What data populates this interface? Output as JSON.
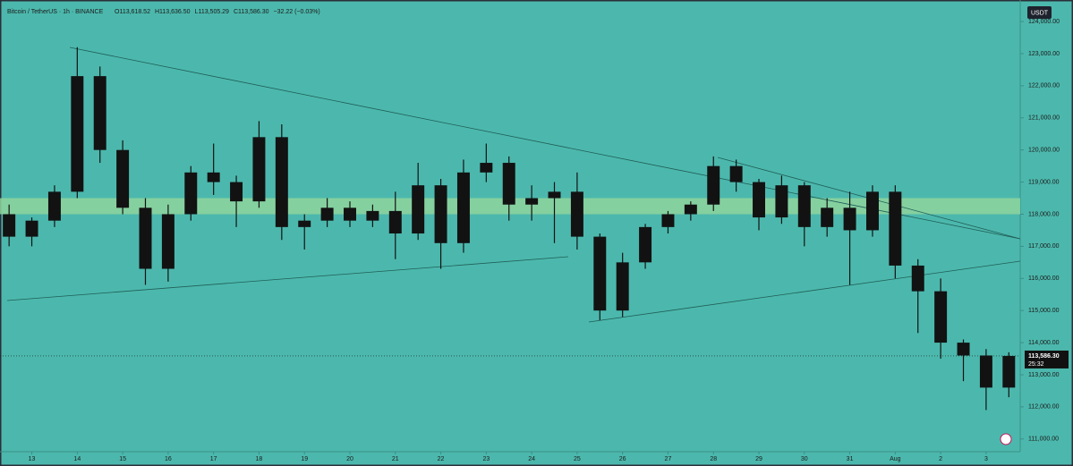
{
  "chart_data": {
    "type": "candlestick",
    "title": "Bitcoin / TetherUS · 1h · BINANCE",
    "ohlc_labels": [
      "O113,618.52",
      "H113,636.50",
      "L113,505.29",
      "C113,586.30",
      "−32.22 (−0.03%)"
    ],
    "currency": "USDT",
    "color": "#121212",
    "open": [
      118000,
      117300,
      117800,
      118700,
      122300,
      120000,
      118200,
      116300,
      118000,
      119300,
      119000,
      118400,
      120400,
      117600,
      117800,
      118200,
      117800,
      118100,
      117400,
      118900,
      117100,
      119300,
      119600,
      118300,
      118500,
      118700,
      117300,
      115000,
      116500,
      117600,
      118000,
      118300,
      119500,
      119000,
      117900,
      118900,
      117600,
      118200,
      117500,
      118700,
      116400,
      115600,
      114000,
      113600,
      112600
    ],
    "high": [
      118300,
      117900,
      118900,
      123200,
      122600,
      120300,
      118500,
      118300,
      119500,
      120200,
      119200,
      120900,
      120800,
      118000,
      118500,
      118400,
      118300,
      118700,
      119600,
      119100,
      119700,
      120200,
      119800,
      118900,
      119000,
      119300,
      117400,
      116800,
      117700,
      118100,
      118400,
      119800,
      119700,
      119100,
      119200,
      119000,
      118500,
      118700,
      118900,
      118900,
      116600,
      116000,
      114100,
      113800,
      113700
    ],
    "low": [
      117000,
      117000,
      117600,
      118500,
      119600,
      118000,
      115800,
      115900,
      117800,
      118600,
      117600,
      118200,
      117200,
      116900,
      117600,
      117600,
      117600,
      116600,
      117200,
      116300,
      116800,
      119000,
      117800,
      117800,
      117100,
      116900,
      114700,
      114800,
      116300,
      117400,
      117800,
      118100,
      118700,
      117500,
      117700,
      117000,
      117300,
      115800,
      117300,
      116000,
      114300,
      113500,
      112800,
      111900,
      112300
    ],
    "close": [
      117300,
      117800,
      118700,
      122300,
      120000,
      118200,
      116300,
      118000,
      119300,
      119000,
      118400,
      120400,
      117600,
      117800,
      118200,
      117800,
      118100,
      117400,
      118900,
      117100,
      119300,
      119600,
      118300,
      118500,
      118700,
      117300,
      115000,
      116500,
      117600,
      118000,
      118300,
      119500,
      119000,
      117900,
      118900,
      117600,
      118200,
      117500,
      118700,
      116400,
      115600,
      114000,
      113600,
      112600,
      113586.3
    ],
    "xlim": [
      -0.4,
      44.5
    ],
    "xticks": [
      {
        "value": 1,
        "label": "13"
      },
      {
        "value": 3,
        "label": "14"
      },
      {
        "value": 5,
        "label": "15"
      },
      {
        "value": 7,
        "label": "16"
      },
      {
        "value": 9,
        "label": "17"
      },
      {
        "value": 11,
        "label": "18"
      },
      {
        "value": 13,
        "label": "19"
      },
      {
        "value": 15,
        "label": "20"
      },
      {
        "value": 17,
        "label": "21"
      },
      {
        "value": 19,
        "label": "22"
      },
      {
        "value": 21,
        "label": "23"
      },
      {
        "value": 23,
        "label": "24"
      },
      {
        "value": 25,
        "label": "25"
      },
      {
        "value": 27,
        "label": "26"
      },
      {
        "value": 29,
        "label": "27"
      },
      {
        "value": 31,
        "label": "28"
      },
      {
        "value": 33,
        "label": "29"
      },
      {
        "value": 35,
        "label": "30"
      },
      {
        "value": 37,
        "label": "31"
      },
      {
        "value": 39,
        "label": "Aug"
      },
      {
        "value": 41,
        "label": "2"
      },
      {
        "value": 43,
        "label": "3"
      }
    ],
    "ylim": [
      110604,
      124671
    ],
    "yticks": [
      {
        "value": 111000,
        "label": "111,000.00"
      },
      {
        "value": 112000,
        "label": "112,000.00"
      },
      {
        "value": 113000,
        "label": "113,000.00"
      },
      {
        "value": 114000,
        "label": "114,000.00"
      },
      {
        "value": 115000,
        "label": "115,000.00"
      },
      {
        "value": 116000,
        "label": "116,000.00"
      },
      {
        "value": 117000,
        "label": "117,000.00"
      },
      {
        "value": 118000,
        "label": "118,000.00"
      },
      {
        "value": 119000,
        "label": "119,000.00"
      },
      {
        "value": 120000,
        "label": "120,000.00"
      },
      {
        "value": 121000,
        "label": "121,000.00"
      },
      {
        "value": 122000,
        "label": "122,000.00"
      },
      {
        "value": 123000,
        "label": "123,000.00"
      },
      {
        "value": 124000,
        "label": "124,000.00"
      }
    ],
    "zone": {
      "from": 118000,
      "to": 118500,
      "color": "#8fd49c"
    },
    "last_price": {
      "value": 113586.3,
      "label": "113,586.30"
    },
    "countdown": "25:32"
  }
}
